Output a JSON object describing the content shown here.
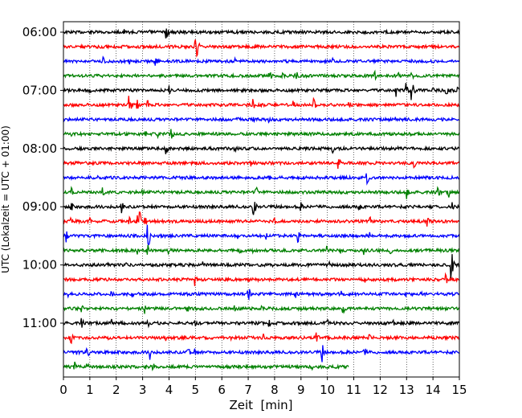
{
  "chart_data": {
    "type": "line",
    "title": "",
    "xlabel": "Zeit  [min]",
    "ylabel": "UTC (Lokalzeit = UTC + 01:00)",
    "xlim": [
      0,
      15
    ],
    "x_ticks": [
      "0",
      "1",
      "2",
      "3",
      "4",
      "5",
      "6",
      "7",
      "8",
      "9",
      "10",
      "11",
      "12",
      "13",
      "14",
      "15"
    ],
    "y_ticks": [
      "06:00",
      "07:00",
      "08:00",
      "09:00",
      "10:00",
      "11:00"
    ],
    "grid": "vertical dotted lines at each minute",
    "legend": "none",
    "color_cycle": [
      "#000000",
      "#ff0000",
      "#0000ff",
      "#008000"
    ],
    "trace_interval_min": 15,
    "first_trace": "06:00",
    "last_trace": "11:45",
    "last_trace_end_min": 10.8,
    "events": [
      {
        "trace": "06:00",
        "t": [
          2.3,
          3.3,
          3.9
        ],
        "amp": [
          0.3,
          0.6,
          0.9
        ]
      },
      {
        "trace": "06:15",
        "t": [
          5.0
        ],
        "amp": [
          2.5
        ]
      },
      {
        "trace": "06:30",
        "t": [
          1.5,
          2.5,
          3.5,
          6.5,
          10.2,
          13.2
        ],
        "amp": [
          0.5,
          0.4,
          0.4,
          0.3,
          0.4,
          0.3
        ]
      },
      {
        "trace": "06:45",
        "t": [
          7.8,
          8.3,
          8.8,
          11.8,
          12.7,
          13.2
        ],
        "amp": [
          0.8,
          0.4,
          0.7,
          0.5,
          0.4,
          0.5
        ]
      },
      {
        "trace": "07:00",
        "t": [
          1.0,
          4.0,
          12.6,
          13.0,
          13.2,
          14.0,
          14.5,
          14.9
        ],
        "amp": [
          0.4,
          0.5,
          0.6,
          0.8,
          1.3,
          0.5,
          0.6,
          0.5
        ]
      },
      {
        "trace": "07:15",
        "t": [
          2.5,
          2.8,
          3.2,
          7.2,
          8.7,
          9.5,
          10.8
        ],
        "amp": [
          1.2,
          0.5,
          0.4,
          0.6,
          0.5,
          0.6,
          0.6
        ]
      },
      {
        "trace": "07:30",
        "t": [
          6.6,
          7.2,
          7.8,
          12.6
        ],
        "amp": [
          0.3,
          0.4,
          0.3,
          0.3
        ]
      },
      {
        "trace": "07:45",
        "t": [
          0.3,
          3.1,
          3.6,
          4.1
        ],
        "amp": [
          0.4,
          0.3,
          0.3,
          0.7
        ]
      },
      {
        "trace": "08:00",
        "t": [
          3.9,
          6.5,
          10.2,
          12.7
        ],
        "amp": [
          0.6,
          0.4,
          0.4,
          0.5
        ]
      },
      {
        "trace": "08:15",
        "t": [
          7.1,
          8.6,
          10.4,
          10.8,
          13.3
        ],
        "amp": [
          0.3,
          0.4,
          1.0,
          0.4,
          0.4
        ]
      },
      {
        "trace": "08:30",
        "t": [
          1.3,
          7.8,
          11.5,
          13.1
        ],
        "amp": [
          0.3,
          0.4,
          0.8,
          0.4
        ]
      },
      {
        "trace": "08:45",
        "t": [
          0.3,
          1.5,
          3.0,
          7.3,
          13.0,
          14.2,
          14.6
        ],
        "amp": [
          0.5,
          0.5,
          0.3,
          0.6,
          0.7,
          0.5,
          0.5
        ]
      },
      {
        "trace": "09:00",
        "t": [
          0.3,
          2.2,
          7.2,
          9.0,
          11.2,
          14.7
        ],
        "amp": [
          0.5,
          0.7,
          1.3,
          0.4,
          0.5,
          0.6
        ]
      },
      {
        "trace": "09:15",
        "t": [
          0.3,
          1.0,
          2.5,
          2.8,
          2.9,
          3.1,
          8.0,
          11.6,
          13.8
        ],
        "amp": [
          0.3,
          0.4,
          0.4,
          0.6,
          0.9,
          0.6,
          0.4,
          0.6,
          0.5
        ]
      },
      {
        "trace": "09:30",
        "t": [
          0.1,
          3.2,
          6.6,
          7.7,
          8.9,
          11.6
        ],
        "amp": [
          0.6,
          1.6,
          0.3,
          0.4,
          0.6,
          0.4
        ]
      },
      {
        "trace": "09:45",
        "t": [
          2.8,
          3.2,
          4.0,
          6.7,
          7.2,
          10.0,
          10.5,
          11.4,
          12.4
        ],
        "amp": [
          0.6,
          0.5,
          0.5,
          0.4,
          0.5,
          0.6,
          0.7,
          0.4,
          0.4
        ]
      },
      {
        "trace": "10:00",
        "t": [
          1.7,
          2.4,
          3.6,
          5.3,
          7.9,
          10.1,
          14.7
        ],
        "amp": [
          0.5,
          0.3,
          0.3,
          0.3,
          0.3,
          0.3,
          1.4
        ]
      },
      {
        "trace": "10:15",
        "t": [
          5.0,
          7.0,
          7.4,
          9.6,
          11.4,
          14.5
        ],
        "amp": [
          0.6,
          0.3,
          0.4,
          0.3,
          0.4,
          0.5
        ]
      },
      {
        "trace": "10:30",
        "t": [
          0.2,
          1.8,
          2.6,
          4.7,
          5.3,
          7.0,
          8.8,
          10.5,
          13.0,
          13.6
        ],
        "amp": [
          0.4,
          0.5,
          0.4,
          0.3,
          0.3,
          0.9,
          0.4,
          0.4,
          0.3,
          0.3
        ]
      },
      {
        "trace": "10:45",
        "t": [
          0.7,
          3.1,
          4.7,
          6.5,
          7.5,
          10.6
        ],
        "amp": [
          0.4,
          0.6,
          0.4,
          0.4,
          0.3,
          0.5
        ]
      },
      {
        "trace": "11:00",
        "t": [
          0.7,
          1.8,
          3.2,
          5.0,
          7.8,
          10.0,
          12.5
        ],
        "amp": [
          0.5,
          0.6,
          0.5,
          0.3,
          0.4,
          0.4,
          0.3
        ]
      },
      {
        "trace": "11:15",
        "t": [
          0.3,
          1.7,
          3.9,
          6.3,
          7.6,
          9.6,
          11.6
        ],
        "amp": [
          0.5,
          0.3,
          0.3,
          0.4,
          0.4,
          0.5,
          0.4
        ]
      },
      {
        "trace": "11:30",
        "t": [
          0.5,
          0.9,
          3.3,
          4.7,
          5.0,
          9.8,
          11.4
        ],
        "amp": [
          0.5,
          0.6,
          0.8,
          0.8,
          0.5,
          0.9,
          0.7
        ]
      },
      {
        "trace": "11:45",
        "t": [
          0.4,
          0.9,
          3.4,
          9.4
        ],
        "amp": [
          0.7,
          0.5,
          0.5,
          0.5
        ]
      }
    ]
  }
}
